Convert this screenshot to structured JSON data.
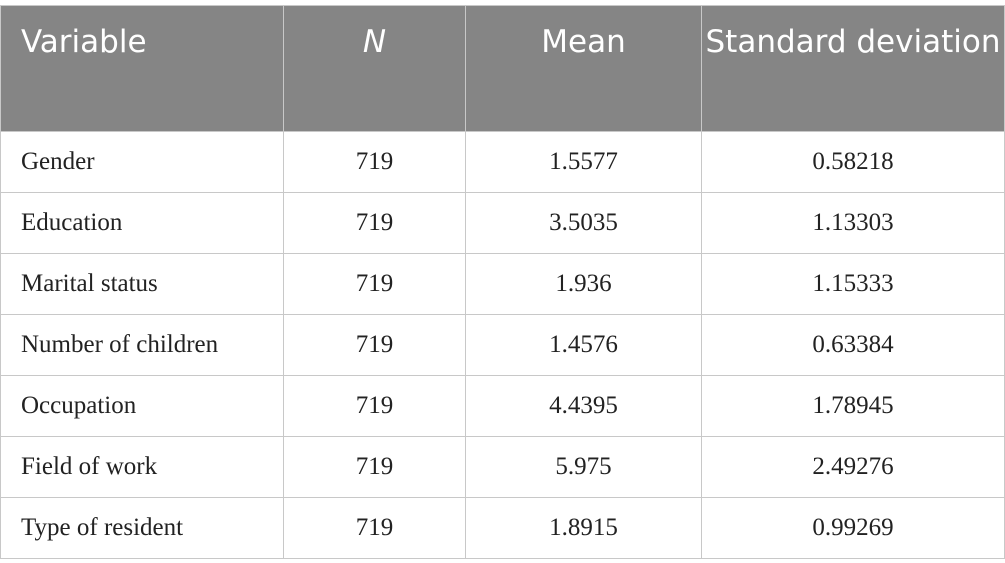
{
  "table": {
    "header": [
      "Variable",
      "N",
      "Mean",
      "Standard deviation"
    ],
    "rows": [
      [
        "Gender",
        "719",
        "1.5577",
        "0.58218"
      ],
      [
        "Education",
        "719",
        "3.5035",
        "1.13303"
      ],
      [
        "Marital status",
        "719",
        "1.936",
        "1.15333"
      ],
      [
        "Number of children",
        "719",
        "1.4576",
        "0.63384"
      ],
      [
        "Occupation",
        "719",
        "4.4395",
        "1.78945"
      ],
      [
        "Field of work",
        "719",
        "5.975",
        "2.49276"
      ],
      [
        "Type of resident",
        "719",
        "1.8915",
        "0.99269"
      ]
    ]
  }
}
